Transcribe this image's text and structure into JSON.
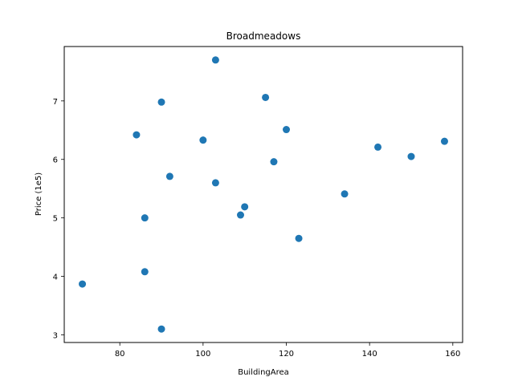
{
  "chart_data": {
    "type": "scatter",
    "title": "Broadmeadows",
    "xlabel": "BuildingArea",
    "ylabel": "Price (1e5)",
    "xlim": [
      66.65,
      162.35
    ],
    "ylim": [
      2.87,
      7.93
    ],
    "xticks": [
      80,
      100,
      120,
      140,
      160
    ],
    "yticks": [
      3,
      4,
      5,
      6,
      7
    ],
    "grid": false,
    "color": "#1f77b4",
    "points": [
      {
        "x": 71,
        "y": 3.87
      },
      {
        "x": 84,
        "y": 6.42
      },
      {
        "x": 86,
        "y": 5.0
      },
      {
        "x": 86,
        "y": 4.08
      },
      {
        "x": 90,
        "y": 6.98
      },
      {
        "x": 90,
        "y": 3.1
      },
      {
        "x": 92,
        "y": 5.71
      },
      {
        "x": 100,
        "y": 6.33
      },
      {
        "x": 103,
        "y": 7.7
      },
      {
        "x": 103,
        "y": 5.6
      },
      {
        "x": 109,
        "y": 5.05
      },
      {
        "x": 110,
        "y": 5.19
      },
      {
        "x": 115,
        "y": 7.06
      },
      {
        "x": 117,
        "y": 5.96
      },
      {
        "x": 120,
        "y": 6.51
      },
      {
        "x": 123,
        "y": 4.65
      },
      {
        "x": 134,
        "y": 5.41
      },
      {
        "x": 142,
        "y": 6.21
      },
      {
        "x": 150,
        "y": 6.05
      },
      {
        "x": 158,
        "y": 6.31
      }
    ]
  }
}
